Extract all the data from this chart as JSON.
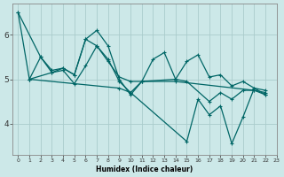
{
  "xlabel": "Humidex (Indice chaleur)",
  "bg_color": "#cce8e8",
  "grid_color": "#aacccc",
  "line_color": "#006666",
  "xlim": [
    -0.5,
    23
  ],
  "ylim": [
    3.3,
    6.7
  ],
  "yticks": [
    4,
    5,
    6
  ],
  "xticks": [
    0,
    1,
    2,
    3,
    4,
    5,
    6,
    7,
    8,
    9,
    10,
    11,
    12,
    13,
    14,
    15,
    16,
    17,
    18,
    19,
    20,
    21,
    22,
    23
  ],
  "series1_x": [
    0,
    1,
    2,
    3,
    4,
    5,
    6,
    7,
    8,
    9,
    10,
    11,
    12,
    13,
    14,
    15,
    16,
    17,
    18,
    19,
    20,
    21,
    22
  ],
  "series1_y": [
    6.5,
    5.0,
    5.5,
    5.2,
    5.25,
    5.1,
    5.9,
    6.1,
    5.75,
    5.0,
    4.65,
    4.95,
    5.45,
    5.6,
    5.0,
    5.4,
    5.55,
    5.05,
    5.1,
    4.85,
    4.95,
    4.8,
    4.75
  ],
  "series2_x": [
    0,
    2,
    3,
    4,
    5,
    6,
    7,
    8,
    9,
    10,
    11,
    14,
    21,
    22
  ],
  "series2_y": [
    6.5,
    5.5,
    5.15,
    5.25,
    5.1,
    5.9,
    5.75,
    5.4,
    5.05,
    4.95,
    4.95,
    4.95,
    4.75,
    4.7
  ],
  "series3_x": [
    1,
    3,
    4,
    5,
    6,
    7,
    8,
    9,
    10,
    11,
    14,
    15,
    17,
    18,
    19,
    20,
    21,
    22
  ],
  "series3_y": [
    5.0,
    5.15,
    5.2,
    4.9,
    5.3,
    5.75,
    5.45,
    4.95,
    4.7,
    4.95,
    5.0,
    4.95,
    4.5,
    4.7,
    4.55,
    4.75,
    4.75,
    4.65
  ],
  "series4_x": [
    1,
    9,
    10,
    15,
    16,
    17,
    18,
    19,
    20,
    21,
    22
  ],
  "series4_y": [
    5.0,
    4.8,
    4.7,
    3.6,
    4.55,
    4.2,
    4.4,
    3.55,
    4.15,
    4.8,
    4.65
  ]
}
